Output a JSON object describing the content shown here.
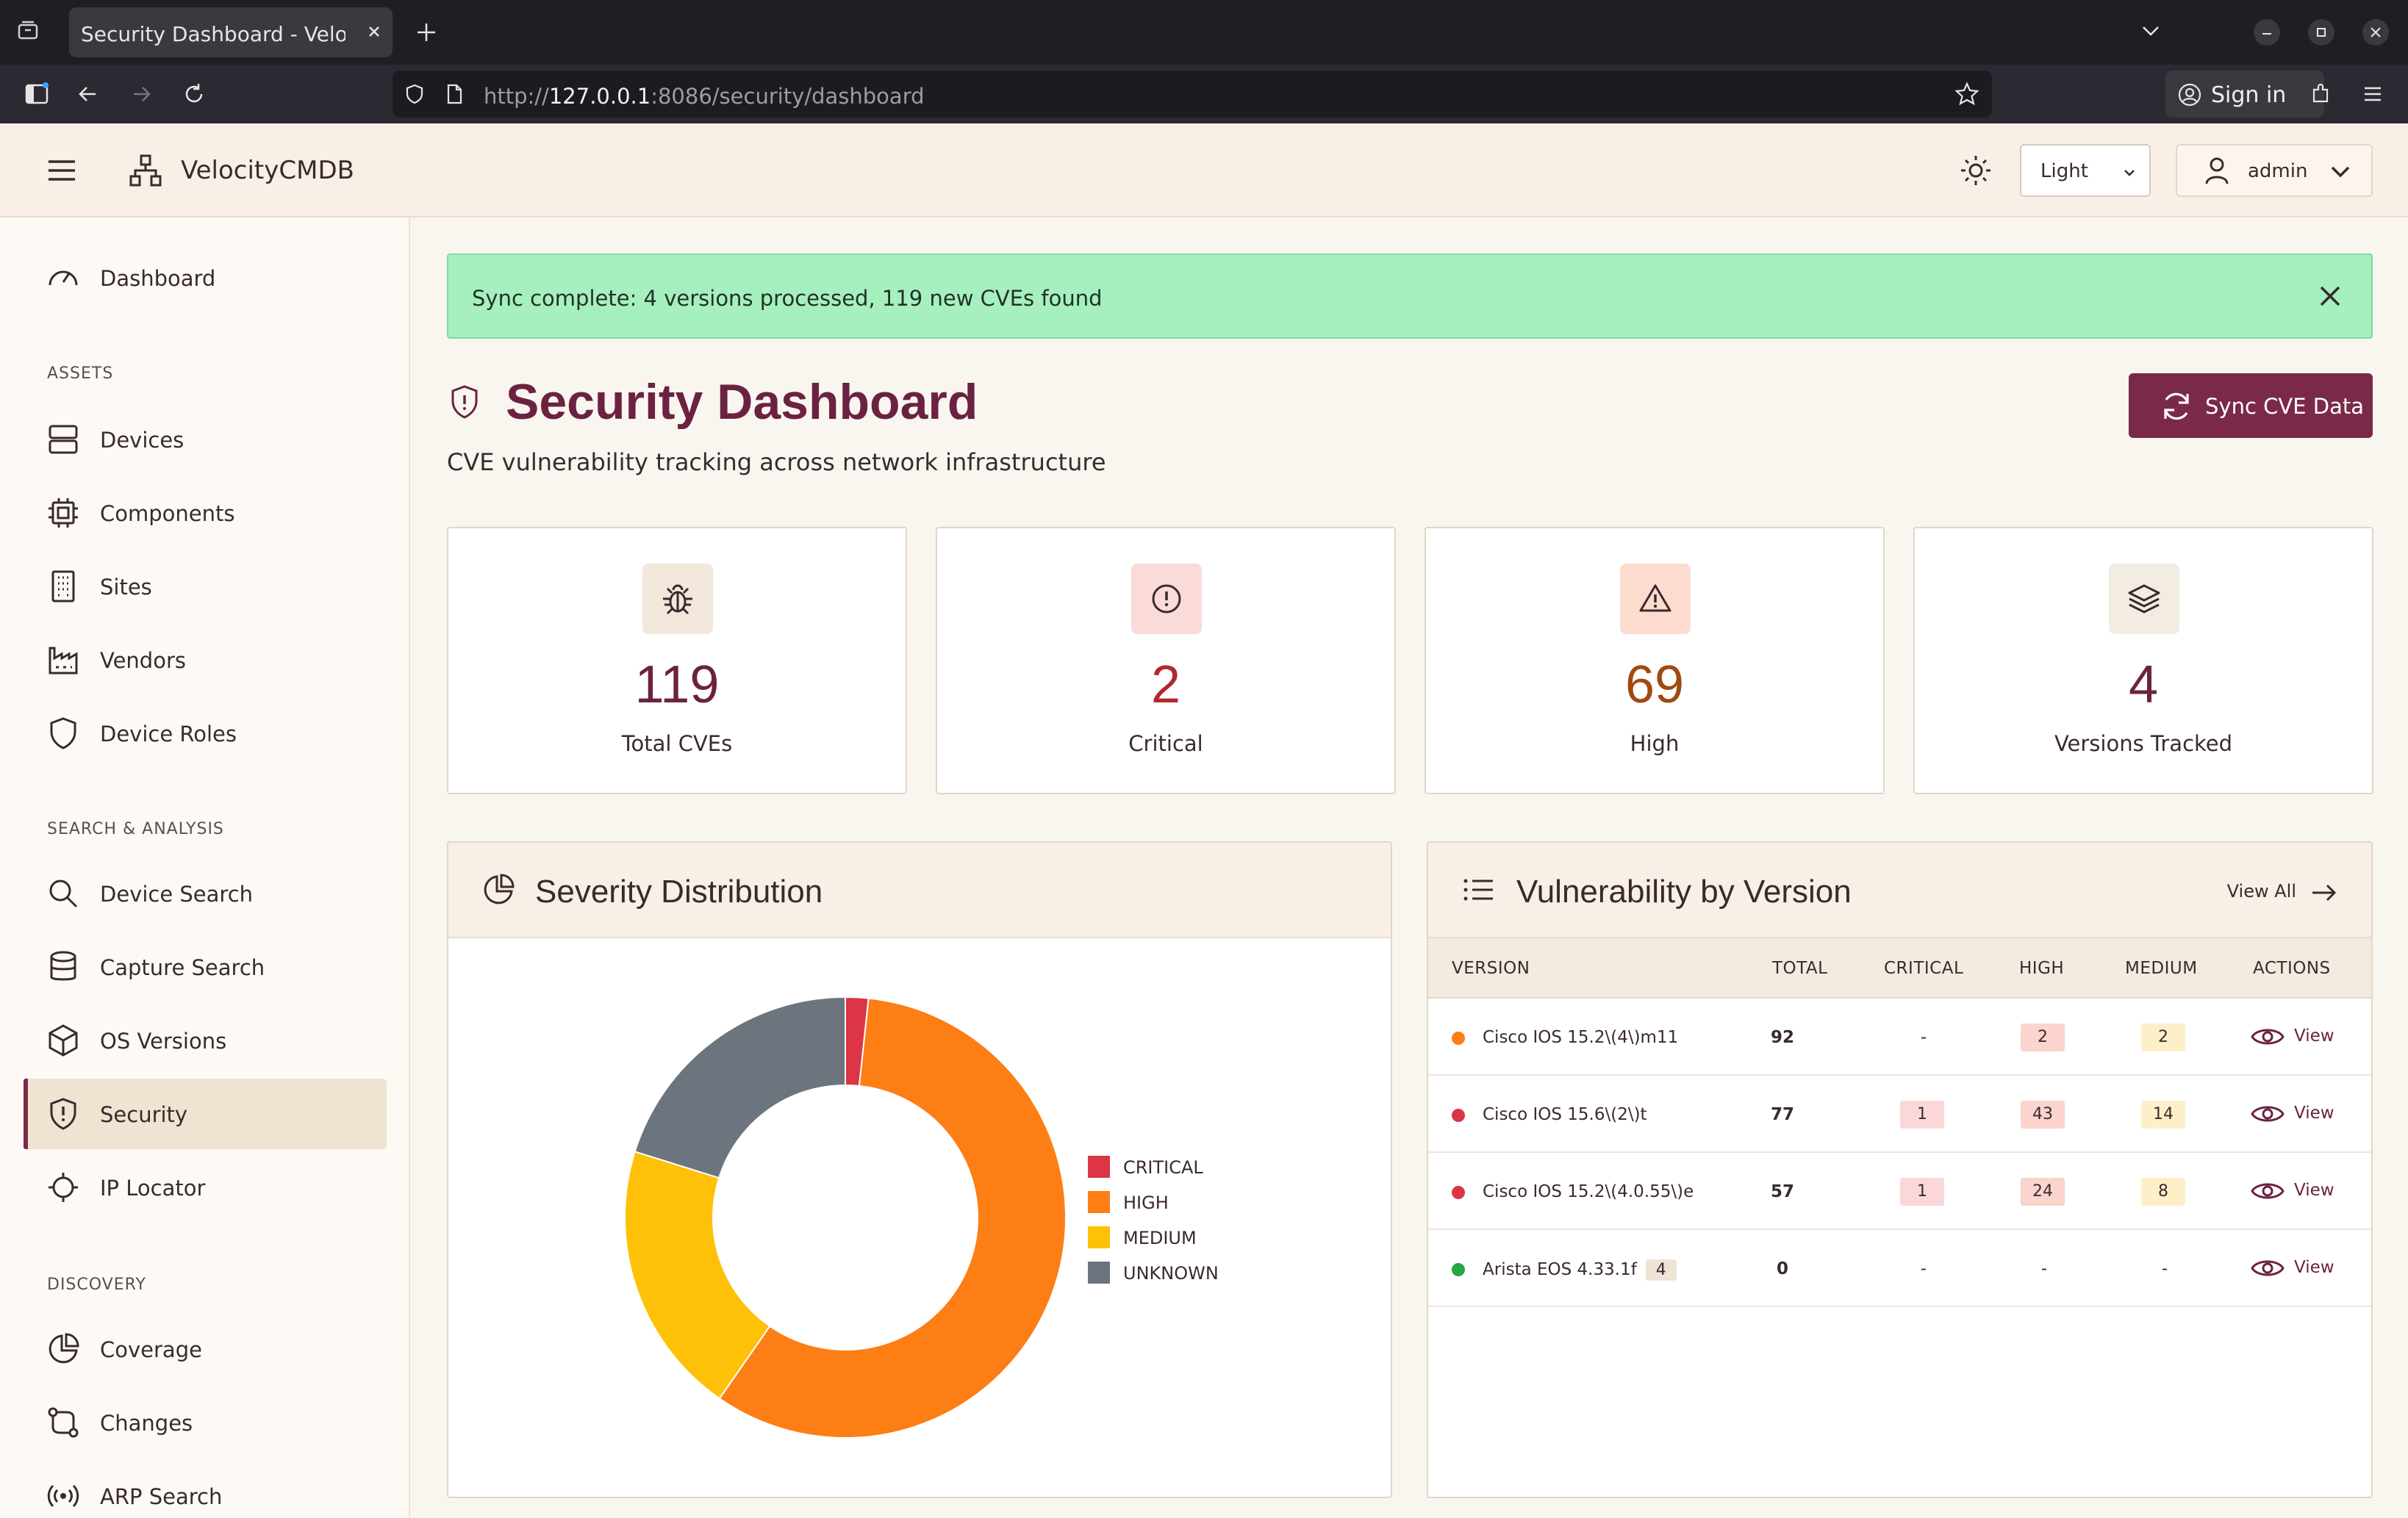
{
  "browser": {
    "tab_title": "Security Dashboard - VelocityCMDB",
    "url_prefix": "http://",
    "url_host": "127.0.0.1",
    "url_rest": ":8086/security/dashboard",
    "signin_label": "Sign in"
  },
  "header": {
    "brand": "VelocityCMDB",
    "theme_value": "Light",
    "user": "admin"
  },
  "sidebar": {
    "top": [
      {
        "label": "Dashboard",
        "icon": "gauge-icon"
      }
    ],
    "sections": [
      {
        "title": "ASSETS",
        "items": [
          {
            "label": "Devices",
            "icon": "server-icon"
          },
          {
            "label": "Components",
            "icon": "chip-icon"
          },
          {
            "label": "Sites",
            "icon": "building-icon"
          },
          {
            "label": "Vendors",
            "icon": "factory-icon"
          },
          {
            "label": "Device Roles",
            "icon": "shield-icon"
          }
        ]
      },
      {
        "title": "SEARCH & ANALYSIS",
        "items": [
          {
            "label": "Device Search",
            "icon": "search-icon"
          },
          {
            "label": "Capture Search",
            "icon": "database-icon"
          },
          {
            "label": "OS Versions",
            "icon": "box-icon"
          },
          {
            "label": "Security",
            "icon": "shield-alert-icon",
            "active": true
          },
          {
            "label": "IP Locator",
            "icon": "crosshair-icon"
          }
        ]
      },
      {
        "title": "DISCOVERY",
        "items": [
          {
            "label": "Coverage",
            "icon": "pie-icon"
          },
          {
            "label": "Changes",
            "icon": "git-compare-icon"
          },
          {
            "label": "ARP Search",
            "icon": "broadcast-icon"
          }
        ]
      }
    ]
  },
  "alert": {
    "text": "Sync complete: 4 versions processed, 119 new CVEs found"
  },
  "page": {
    "title": "Security Dashboard",
    "subtitle": "CVE vulnerability tracking across network infrastructure",
    "sync_button": "Sync CVE Data"
  },
  "stats": [
    {
      "value": "119",
      "label": "Total CVEs",
      "icon": "bug-icon",
      "color": "#6b2240",
      "bg": "#f1e7da"
    },
    {
      "value": "2",
      "label": "Critical",
      "icon": "alert-circle-icon",
      "color": "#b3262e",
      "bg": "#fbdada"
    },
    {
      "value": "69",
      "label": "High",
      "icon": "warning-triangle-icon",
      "color": "#a04a10",
      "bg": "#fcdccf"
    },
    {
      "value": "4",
      "label": "Versions Tracked",
      "icon": "layers-icon",
      "color": "#6b2240",
      "bg": "#f3ece3"
    }
  ],
  "severity_panel": {
    "title": "Severity Distribution",
    "legend": [
      "CRITICAL",
      "HIGH",
      "MEDIUM",
      "UNKNOWN"
    ]
  },
  "chart_data": {
    "type": "pie",
    "categories": [
      "CRITICAL",
      "HIGH",
      "MEDIUM",
      "UNKNOWN"
    ],
    "values": [
      2,
      69,
      24,
      24
    ],
    "colors": [
      "#dc3545",
      "#fd7e14",
      "#ffc107",
      "#6c757d"
    ],
    "donut": true,
    "legend_position": "right"
  },
  "versions_panel": {
    "title": "Vulnerability by Version",
    "view_all": "View All",
    "columns": [
      "VERSION",
      "TOTAL",
      "CRITICAL",
      "HIGH",
      "MEDIUM",
      "ACTIONS"
    ],
    "rows": [
      {
        "name": "Cisco IOS 15.2\\(4\\)m11",
        "tag": "",
        "dot": "#fd7e14",
        "total": "92",
        "critical": "-",
        "high": "2",
        "medium": "2",
        "action": "View"
      },
      {
        "name": "Cisco IOS 15.6\\(2\\)t",
        "tag": "",
        "dot": "#dc3545",
        "total": "77",
        "critical": "1",
        "high": "43",
        "medium": "14",
        "action": "View"
      },
      {
        "name": "Cisco IOS 15.2\\(4.0.55\\)e",
        "tag": "",
        "dot": "#dc3545",
        "total": "57",
        "critical": "1",
        "high": "24",
        "medium": "8",
        "action": "View"
      },
      {
        "name": "Arista EOS 4.33.1f",
        "tag": "4",
        "dot": "#28a745",
        "total": "0",
        "critical": "-",
        "high": "-",
        "medium": "-",
        "action": "View"
      }
    ]
  }
}
